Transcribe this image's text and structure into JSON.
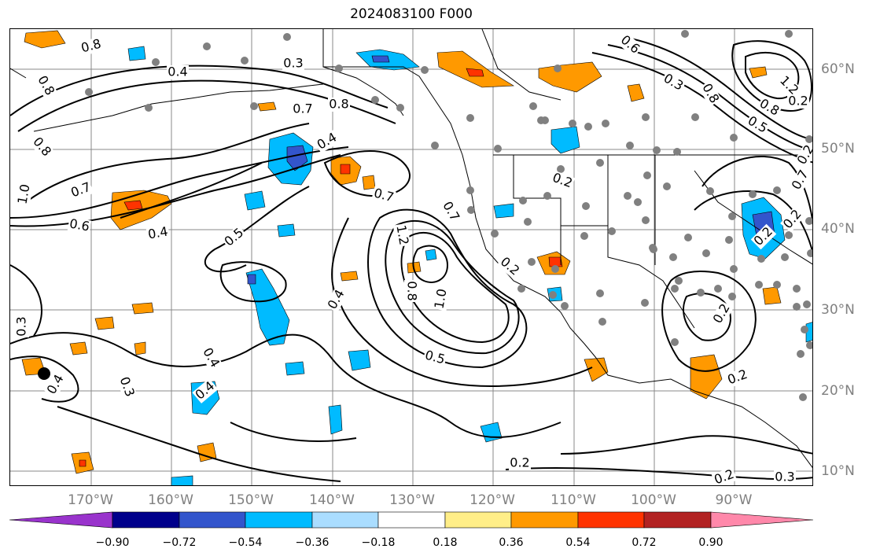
{
  "title": "2024083100 F000",
  "lat_labels": [
    "60°N",
    "50°N",
    "40°N",
    "30°N",
    "20°N",
    "10°N"
  ],
  "lon_labels": [
    "170°W",
    "160°W",
    "150°W",
    "140°W",
    "130°W",
    "120°W",
    "110°W",
    "100°W",
    "90°W"
  ],
  "colorbar": {
    "ticks": [
      "−0.90",
      "−0.72",
      "−0.54",
      "−0.36",
      "−0.18",
      "0.18",
      "0.36",
      "0.54",
      "0.72",
      "0.90"
    ],
    "colors": [
      "#9933cc",
      "#00008b",
      "#3355cc",
      "#00bbff",
      "#aaddff",
      "#ffffff",
      "#ffee88",
      "#ff9900",
      "#ff3300",
      "#b22222",
      "#ff88aa"
    ]
  },
  "contour_labels": [
    "0.8",
    "0.7",
    "0.8",
    "0.4",
    "0.3",
    "0.7",
    "0.8",
    "0.4",
    "0.7",
    "0.8",
    "0.6",
    "0.4",
    "1.0",
    "0.5",
    "0.7",
    "1.2",
    "0.8",
    "1.0",
    "0.5",
    "0.2",
    "0.2",
    "0.4",
    "0.4",
    "0.3",
    "0.3",
    "0.4",
    "0.2",
    "0.2",
    "0.2",
    "0.6",
    "0.3",
    "0.8",
    "1.2",
    "0.5",
    "0.2",
    "0.4",
    "0.2",
    "0.2",
    "0.2",
    "0.3",
    "0.8",
    "0.7",
    "0.2"
  ],
  "shading_colors": {
    "orange": "#ff9900",
    "red_orange": "#ff3300",
    "cyan": "#00bbff",
    "light_blue": "#aaddff",
    "blue": "#3355cc",
    "yellow": "#ffee88"
  },
  "station_color": "#808080"
}
